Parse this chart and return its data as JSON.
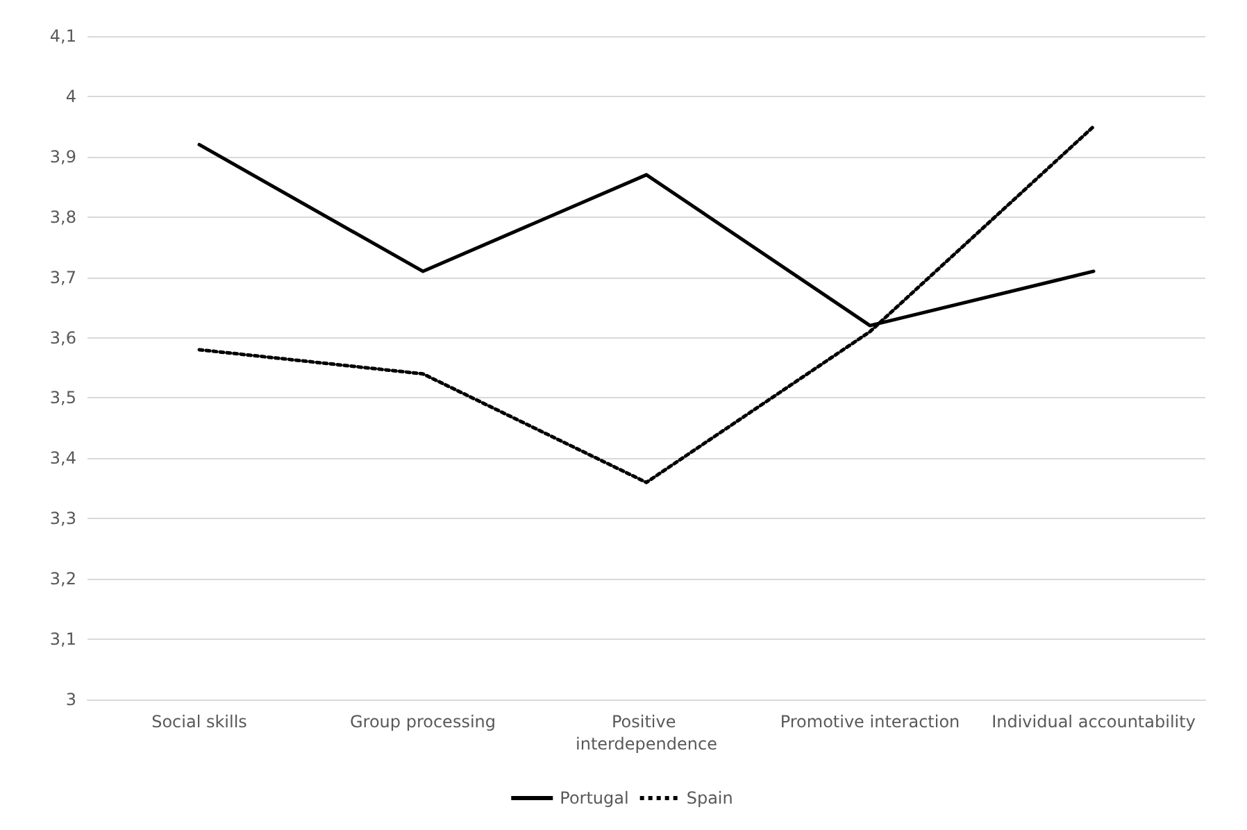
{
  "chart_data": {
    "type": "line",
    "categories": [
      "Social skills",
      "Group processing",
      "Positive interdependence",
      "Promotive interaction",
      "Individual accountability"
    ],
    "series": [
      {
        "name": "Portugal",
        "color": "#000000",
        "line_style": "solid",
        "values": [
          3.92,
          3.71,
          3.87,
          3.62,
          3.71
        ]
      },
      {
        "name": "Spain",
        "color": "#000000",
        "line_style": "dotted",
        "values": [
          3.58,
          3.54,
          3.36,
          3.61,
          3.95
        ]
      }
    ],
    "ylim": [
      3,
      4.1
    ],
    "yticks": [
      {
        "value": 3,
        "label": "3"
      },
      {
        "value": 3.1,
        "label": "3,1"
      },
      {
        "value": 3.2,
        "label": "3,2"
      },
      {
        "value": 3.3,
        "label": "3,3"
      },
      {
        "value": 3.4,
        "label": "3,4"
      },
      {
        "value": 3.5,
        "label": "3,5"
      },
      {
        "value": 3.6,
        "label": "3,6"
      },
      {
        "value": 3.7,
        "label": "3,7"
      },
      {
        "value": 3.8,
        "label": "3,8"
      },
      {
        "value": 3.9,
        "label": "3,9"
      },
      {
        "value": 4,
        "label": "4"
      },
      {
        "value": 4.1,
        "label": "4,1"
      }
    ],
    "grid": "y",
    "legend": "bottom",
    "marker": "none"
  }
}
